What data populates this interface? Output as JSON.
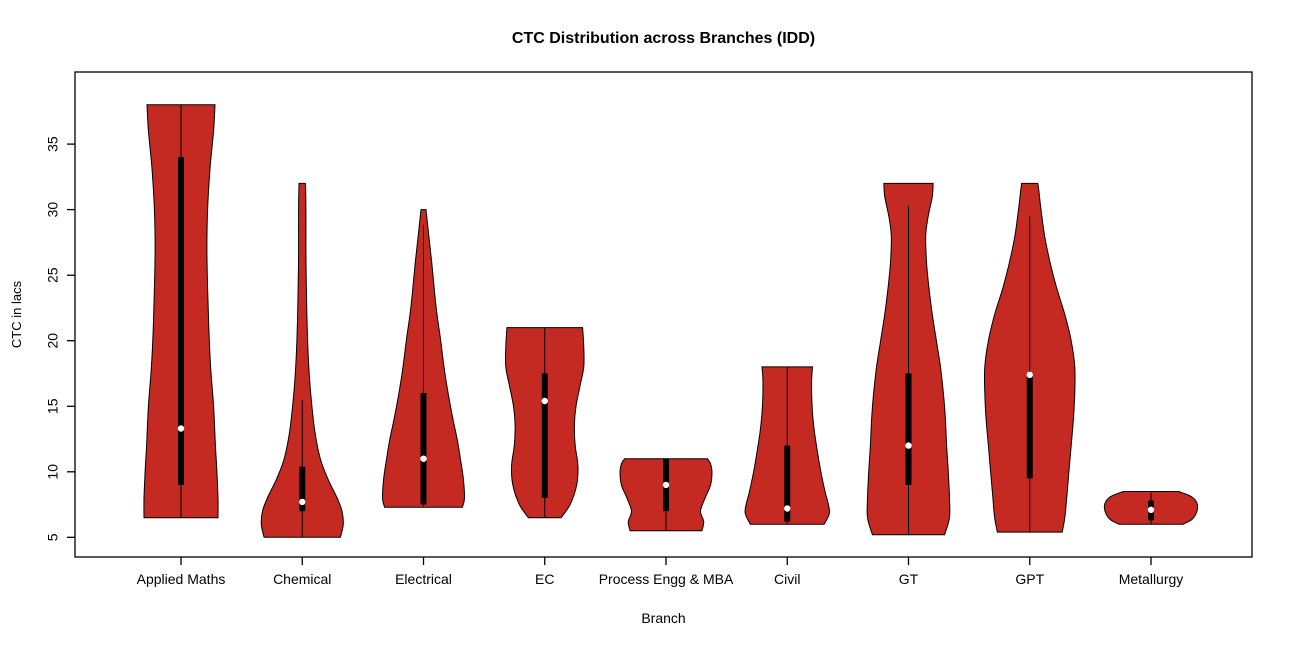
{
  "chart_data": {
    "type": "violin",
    "title": "CTC Distribution across Branches (IDD)",
    "xlabel": "Branch",
    "ylabel": "CTC in lacs",
    "yticks": [
      5,
      10,
      15,
      20,
      25,
      30,
      35
    ],
    "ylim": [
      3.5,
      40.5
    ],
    "grid": false,
    "legend": "none",
    "fill_color": "#C42A22",
    "line_color": "#000000",
    "median_dot_color": "#ffffff",
    "categories": [
      "Applied Maths",
      "Chemical",
      "Electrical",
      "EC",
      "Process Engg & MBA",
      "Civil",
      "GT",
      "GPT",
      "Metallurgy"
    ],
    "violins": [
      {
        "branch": "Applied Maths",
        "slug": "applied-maths",
        "min": 6.5,
        "max": 38,
        "q1": 9,
        "q3": 34,
        "median": 13.3,
        "whisker_low": 6.5,
        "whisker_high": 38,
        "hw": 37,
        "profile": [
          [
            6.5,
            1.0
          ],
          [
            8,
            1.0
          ],
          [
            10,
            0.97
          ],
          [
            12,
            0.93
          ],
          [
            15,
            0.88
          ],
          [
            18,
            0.8
          ],
          [
            21,
            0.75
          ],
          [
            24,
            0.72
          ],
          [
            27,
            0.7
          ],
          [
            30,
            0.72
          ],
          [
            33,
            0.78
          ],
          [
            36,
            0.88
          ],
          [
            38,
            0.92
          ]
        ]
      },
      {
        "branch": "Chemical",
        "slug": "chemical",
        "min": 5,
        "max": 32,
        "q1": 7,
        "q3": 10.4,
        "median": 7.7,
        "whisker_low": 5,
        "whisker_high": 15.5,
        "hw": 41,
        "profile": [
          [
            5,
            0.93
          ],
          [
            6,
            1.0
          ],
          [
            7,
            0.97
          ],
          [
            8,
            0.85
          ],
          [
            9.5,
            0.62
          ],
          [
            11,
            0.44
          ],
          [
            13,
            0.31
          ],
          [
            15.5,
            0.22
          ],
          [
            18,
            0.16
          ],
          [
            21,
            0.12
          ],
          [
            24,
            0.1
          ],
          [
            27,
            0.09
          ],
          [
            30,
            0.09
          ],
          [
            32,
            0.08
          ]
        ]
      },
      {
        "branch": "Electrical",
        "slug": "electrical",
        "min": 7.3,
        "max": 30,
        "q1": 7.5,
        "q3": 16,
        "median": 11,
        "whisker_low": 7.3,
        "whisker_high": 28.8,
        "hw": 41,
        "profile": [
          [
            7.3,
            0.95
          ],
          [
            8,
            1.0
          ],
          [
            9.5,
            0.97
          ],
          [
            11,
            0.9
          ],
          [
            12.5,
            0.82
          ],
          [
            14,
            0.72
          ],
          [
            16,
            0.6
          ],
          [
            18,
            0.5
          ],
          [
            20,
            0.42
          ],
          [
            22,
            0.33
          ],
          [
            24,
            0.26
          ],
          [
            26,
            0.2
          ],
          [
            28,
            0.13
          ],
          [
            30,
            0.06
          ]
        ]
      },
      {
        "branch": "EC",
        "slug": "ec",
        "min": 6.5,
        "max": 21,
        "q1": 8,
        "q3": 17.5,
        "median": 15.4,
        "whisker_low": 6.5,
        "whisker_high": 21,
        "hw": 39,
        "profile": [
          [
            6.5,
            0.42
          ],
          [
            7.5,
            0.65
          ],
          [
            9,
            0.82
          ],
          [
            10.5,
            0.85
          ],
          [
            12,
            0.78
          ],
          [
            13.5,
            0.76
          ],
          [
            15,
            0.8
          ],
          [
            16.5,
            0.9
          ],
          [
            18,
            1.0
          ],
          [
            19.5,
            1.0
          ],
          [
            21,
            0.97
          ]
        ]
      },
      {
        "branch": "Process Engg & MBA",
        "slug": "process-engg-mba",
        "min": 5.5,
        "max": 11,
        "q1": 7,
        "q3": 11,
        "median": 9,
        "whisker_low": 5.5,
        "whisker_high": 11,
        "hw": 46,
        "profile": [
          [
            5.5,
            0.78
          ],
          [
            6.2,
            0.82
          ],
          [
            7,
            0.75
          ],
          [
            8,
            0.85
          ],
          [
            9,
            0.97
          ],
          [
            10,
            1.0
          ],
          [
            10.6,
            0.97
          ],
          [
            11,
            0.9
          ]
        ]
      },
      {
        "branch": "Civil",
        "slug": "civil",
        "min": 6,
        "max": 18,
        "q1": 6.2,
        "q3": 12,
        "median": 7.2,
        "whisker_low": 6,
        "whisker_high": 18,
        "hw": 42,
        "profile": [
          [
            6,
            0.88
          ],
          [
            6.8,
            1.0
          ],
          [
            7.5,
            0.98
          ],
          [
            8.5,
            0.9
          ],
          [
            10,
            0.8
          ],
          [
            11.5,
            0.72
          ],
          [
            13,
            0.65
          ],
          [
            14.5,
            0.6
          ],
          [
            16,
            0.58
          ],
          [
            17,
            0.58
          ],
          [
            18,
            0.6
          ]
        ]
      },
      {
        "branch": "GT",
        "slug": "gt",
        "min": 5.2,
        "max": 32,
        "q1": 9,
        "q3": 17.5,
        "median": 12,
        "whisker_low": 5.2,
        "whisker_high": 30.3,
        "hw": 41,
        "profile": [
          [
            5.2,
            0.88
          ],
          [
            6.5,
            1.0
          ],
          [
            8,
            1.0
          ],
          [
            10,
            0.97
          ],
          [
            12,
            0.93
          ],
          [
            14,
            0.9
          ],
          [
            16,
            0.85
          ],
          [
            18,
            0.78
          ],
          [
            20,
            0.68
          ],
          [
            22,
            0.58
          ],
          [
            24,
            0.5
          ],
          [
            26,
            0.44
          ],
          [
            28,
            0.42
          ],
          [
            29.5,
            0.48
          ],
          [
            31,
            0.58
          ],
          [
            32,
            0.6
          ]
        ]
      },
      {
        "branch": "GPT",
        "slug": "gpt",
        "min": 5.4,
        "max": 32,
        "q1": 9.5,
        "q3": 17.5,
        "median": 17.4,
        "whisker_low": 5.4,
        "whisker_high": 29.5,
        "hw": 45,
        "profile": [
          [
            5.4,
            0.72
          ],
          [
            6.5,
            0.78
          ],
          [
            8,
            0.82
          ],
          [
            10,
            0.87
          ],
          [
            12,
            0.92
          ],
          [
            14,
            0.97
          ],
          [
            16,
            1.0
          ],
          [
            18,
            1.0
          ],
          [
            20,
            0.92
          ],
          [
            22,
            0.78
          ],
          [
            24,
            0.6
          ],
          [
            26,
            0.45
          ],
          [
            28,
            0.33
          ],
          [
            30,
            0.25
          ],
          [
            31.5,
            0.2
          ],
          [
            32,
            0.18
          ]
        ]
      },
      {
        "branch": "Metallurgy",
        "slug": "metallurgy",
        "min": 6,
        "max": 8.5,
        "q1": 6.3,
        "q3": 7.8,
        "median": 7.1,
        "whisker_low": 6,
        "whisker_high": 8.4,
        "hw": 46,
        "profile": [
          [
            6,
            0.7
          ],
          [
            6.4,
            0.9
          ],
          [
            7,
            1.0
          ],
          [
            7.6,
            1.0
          ],
          [
            8.1,
            0.88
          ],
          [
            8.5,
            0.6
          ]
        ]
      }
    ]
  }
}
